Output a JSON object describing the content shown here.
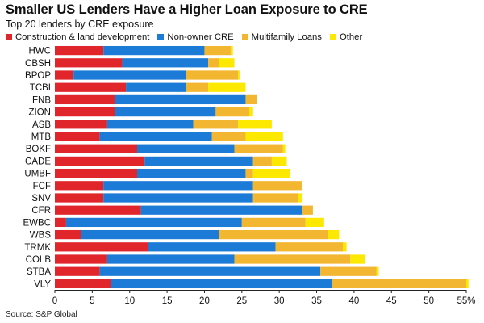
{
  "chart_data": {
    "type": "bar",
    "orientation": "horizontal",
    "stacked": true,
    "title": "Smaller US Lenders Have a Higher Loan Exposure to CRE",
    "subtitle": "Top 20 lenders by CRE exposure",
    "source": "Source: S&P Global",
    "categories": [
      "HWC",
      "CBSH",
      "BPOP",
      "TCBI",
      "FNB",
      "ZION",
      "ASB",
      "MTB",
      "BOKF",
      "CADE",
      "UMBF",
      "FCF",
      "SNV",
      "CFR",
      "EWBC",
      "WBS",
      "TRMK",
      "COLB",
      "STBA",
      "VLY"
    ],
    "series": [
      {
        "name": "Construction & land development",
        "color": "#e0262b",
        "values": [
          6.5,
          9.0,
          2.5,
          9.5,
          8.0,
          8.0,
          7.0,
          6.0,
          11.0,
          12.0,
          11.0,
          6.5,
          6.5,
          11.5,
          1.5,
          3.5,
          12.5,
          7.0,
          6.0,
          7.5
        ]
      },
      {
        "name": "Non-owner CRE",
        "color": "#1b7bd6",
        "values": [
          13.5,
          11.5,
          15.0,
          8.0,
          17.5,
          13.5,
          11.5,
          15.0,
          13.0,
          14.5,
          14.5,
          20.0,
          20.0,
          21.5,
          23.5,
          18.5,
          17.0,
          17.0,
          29.5,
          29.5
        ]
      },
      {
        "name": "Multifamily Loans",
        "color": "#f2b630",
        "values": [
          3.5,
          1.5,
          7.0,
          3.0,
          1.5,
          4.5,
          6.0,
          4.5,
          6.5,
          2.5,
          1.0,
          6.5,
          6.0,
          1.5,
          8.5,
          14.5,
          9.0,
          15.5,
          7.5,
          18.0
        ]
      },
      {
        "name": "Other",
        "color": "#fde800",
        "values": [
          0.3,
          2.0,
          0.2,
          5.0,
          0.0,
          0.5,
          4.5,
          5.0,
          0.3,
          2.0,
          5.0,
          0.0,
          0.5,
          0.0,
          2.5,
          1.5,
          0.5,
          2.0,
          0.3,
          0.3
        ]
      }
    ],
    "x_ticks": [
      "0",
      "5",
      "10",
      "15",
      "20",
      "25",
      "30",
      "35",
      "40",
      "45",
      "50",
      "55%"
    ],
    "xlim": [
      0,
      55
    ],
    "grid": false,
    "legend_position": "top"
  }
}
